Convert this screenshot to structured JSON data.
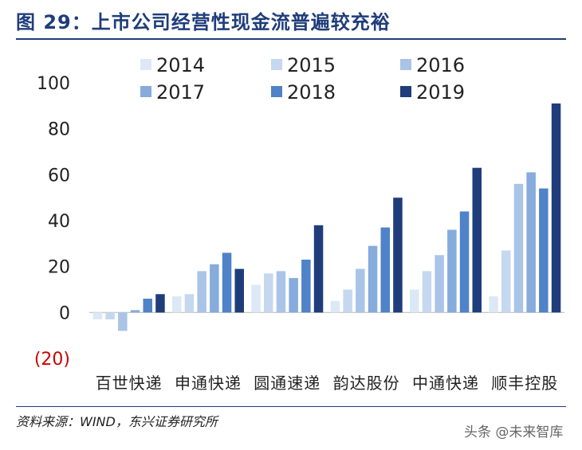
{
  "title": "图 29：上市公司经营性现金流普遍较充裕",
  "source": "资料来源：WIND，东兴证券研究所",
  "watermark": "头条 @未来智库",
  "colors": {
    "title": "#1f3d7a",
    "series": [
      "#dce8f5",
      "#c5d8ef",
      "#a9c4e6",
      "#86abdc",
      "#4f82c8",
      "#1f3d7a"
    ],
    "axis_text": "#222222",
    "negative_tick": "#cc0000"
  },
  "chart_data": {
    "type": "bar",
    "categories": [
      "百世快递",
      "申通快递",
      "圆通速递",
      "韵达股份",
      "中通快递",
      "顺丰控股"
    ],
    "series": [
      {
        "name": "2014",
        "values": [
          -3,
          7,
          12,
          5,
          10,
          7
        ]
      },
      {
        "name": "2015",
        "values": [
          -3,
          8,
          17,
          10,
          18,
          27
        ]
      },
      {
        "name": "2016",
        "values": [
          -8,
          18,
          18,
          19,
          25,
          56
        ]
      },
      {
        "name": "2017",
        "values": [
          1,
          21,
          15,
          29,
          36,
          61
        ]
      },
      {
        "name": "2018",
        "values": [
          6,
          26,
          23,
          37,
          44,
          54
        ]
      },
      {
        "name": "2019",
        "values": [
          8,
          19,
          38,
          50,
          63,
          91
        ]
      }
    ],
    "yticks": [
      "100",
      "80",
      "60",
      "40",
      "20",
      "0",
      "(20)"
    ],
    "ytick_values": [
      100,
      80,
      60,
      40,
      20,
      0,
      -20
    ],
    "ylim": [
      -20,
      100
    ],
    "grid": false,
    "legend_position": "top"
  }
}
